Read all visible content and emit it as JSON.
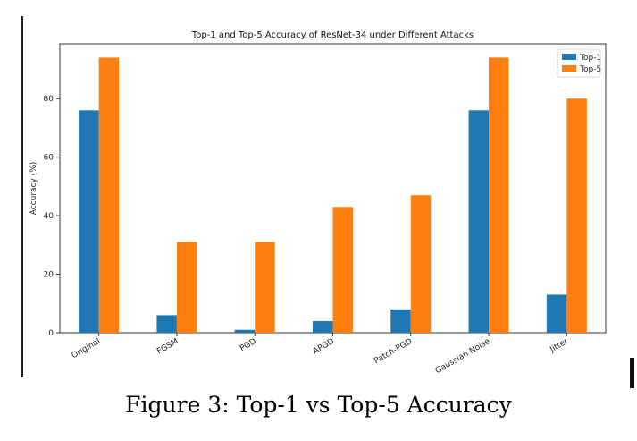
{
  "caption": "Figure 3: Top-1 vs Top-5 Accuracy",
  "chart_data": {
    "type": "bar",
    "title": "Top-1 and Top-5 Accuracy of ResNet-34 under Different Attacks",
    "xlabel": "",
    "ylabel": "Accuracy (%)",
    "categories": [
      "Original",
      "FGSM",
      "PGD",
      "APGD",
      "Patch-PGD",
      "Gaussian Noise",
      "Jitter"
    ],
    "series": [
      {
        "name": "Top-1",
        "color": "#1f77b4",
        "values": [
          76,
          6,
          1,
          4,
          8,
          76,
          13
        ]
      },
      {
        "name": "Top-5",
        "color": "#ff7f0e",
        "values": [
          94,
          31,
          31,
          43,
          47,
          94,
          80
        ]
      }
    ],
    "ylim": [
      0,
      98.7
    ],
    "yticks": [
      0,
      20,
      40,
      60,
      80
    ],
    "grid": false,
    "legend": "top-right"
  }
}
